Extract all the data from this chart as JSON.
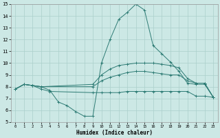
{
  "xlabel": "Humidex (Indice chaleur)",
  "xlim": [
    -0.5,
    23.5
  ],
  "ylim": [
    5,
    15
  ],
  "xticks": [
    0,
    1,
    2,
    3,
    4,
    5,
    6,
    7,
    8,
    9,
    10,
    11,
    12,
    13,
    14,
    15,
    16,
    17,
    18,
    19,
    20,
    21,
    22,
    23
  ],
  "yticks": [
    5,
    6,
    7,
    8,
    9,
    10,
    11,
    12,
    13,
    14,
    15
  ],
  "bg_color": "#cce8e5",
  "grid_color": "#aacfcb",
  "line_color": "#2d7b74",
  "lines": [
    {
      "x": [
        0,
        1,
        2,
        3,
        4,
        5,
        6,
        7,
        8,
        9,
        10,
        11,
        12,
        13,
        14,
        15,
        16,
        17,
        18,
        19,
        20,
        21,
        22,
        23
      ],
      "y": [
        7.8,
        8.2,
        8.1,
        8.0,
        7.7,
        6.7,
        6.4,
        5.9,
        5.5,
        5.5,
        10.0,
        12.0,
        13.7,
        14.3,
        15.0,
        14.5,
        11.5,
        10.8,
        10.1,
        9.3,
        8.3,
        8.2,
        8.2,
        7.1
      ]
    },
    {
      "x": [
        0,
        1,
        2,
        3,
        4,
        9,
        10,
        11,
        12,
        13,
        14,
        15,
        16,
        17,
        18,
        19,
        20,
        21,
        22,
        23
      ],
      "y": [
        7.8,
        8.2,
        8.1,
        7.8,
        7.6,
        7.5,
        7.5,
        7.5,
        7.5,
        7.6,
        7.6,
        7.6,
        7.6,
        7.6,
        7.6,
        7.6,
        7.6,
        7.2,
        7.2,
        7.1
      ]
    },
    {
      "x": [
        0,
        1,
        2,
        3,
        9,
        10,
        11,
        12,
        13,
        14,
        15,
        16,
        17,
        18,
        19,
        20,
        21,
        22,
        23
      ],
      "y": [
        7.8,
        8.2,
        8.1,
        8.0,
        8.0,
        8.5,
        8.8,
        9.0,
        9.2,
        9.3,
        9.3,
        9.2,
        9.1,
        9.0,
        9.0,
        8.5,
        8.3,
        8.3,
        7.1
      ]
    },
    {
      "x": [
        0,
        1,
        2,
        3,
        9,
        10,
        11,
        12,
        13,
        14,
        15,
        16,
        17,
        18,
        19,
        20,
        21,
        22,
        23
      ],
      "y": [
        7.8,
        8.2,
        8.1,
        8.0,
        8.2,
        9.0,
        9.5,
        9.8,
        9.9,
        10.0,
        10.0,
        10.0,
        9.9,
        9.8,
        9.6,
        8.7,
        8.3,
        8.3,
        7.1
      ]
    }
  ]
}
